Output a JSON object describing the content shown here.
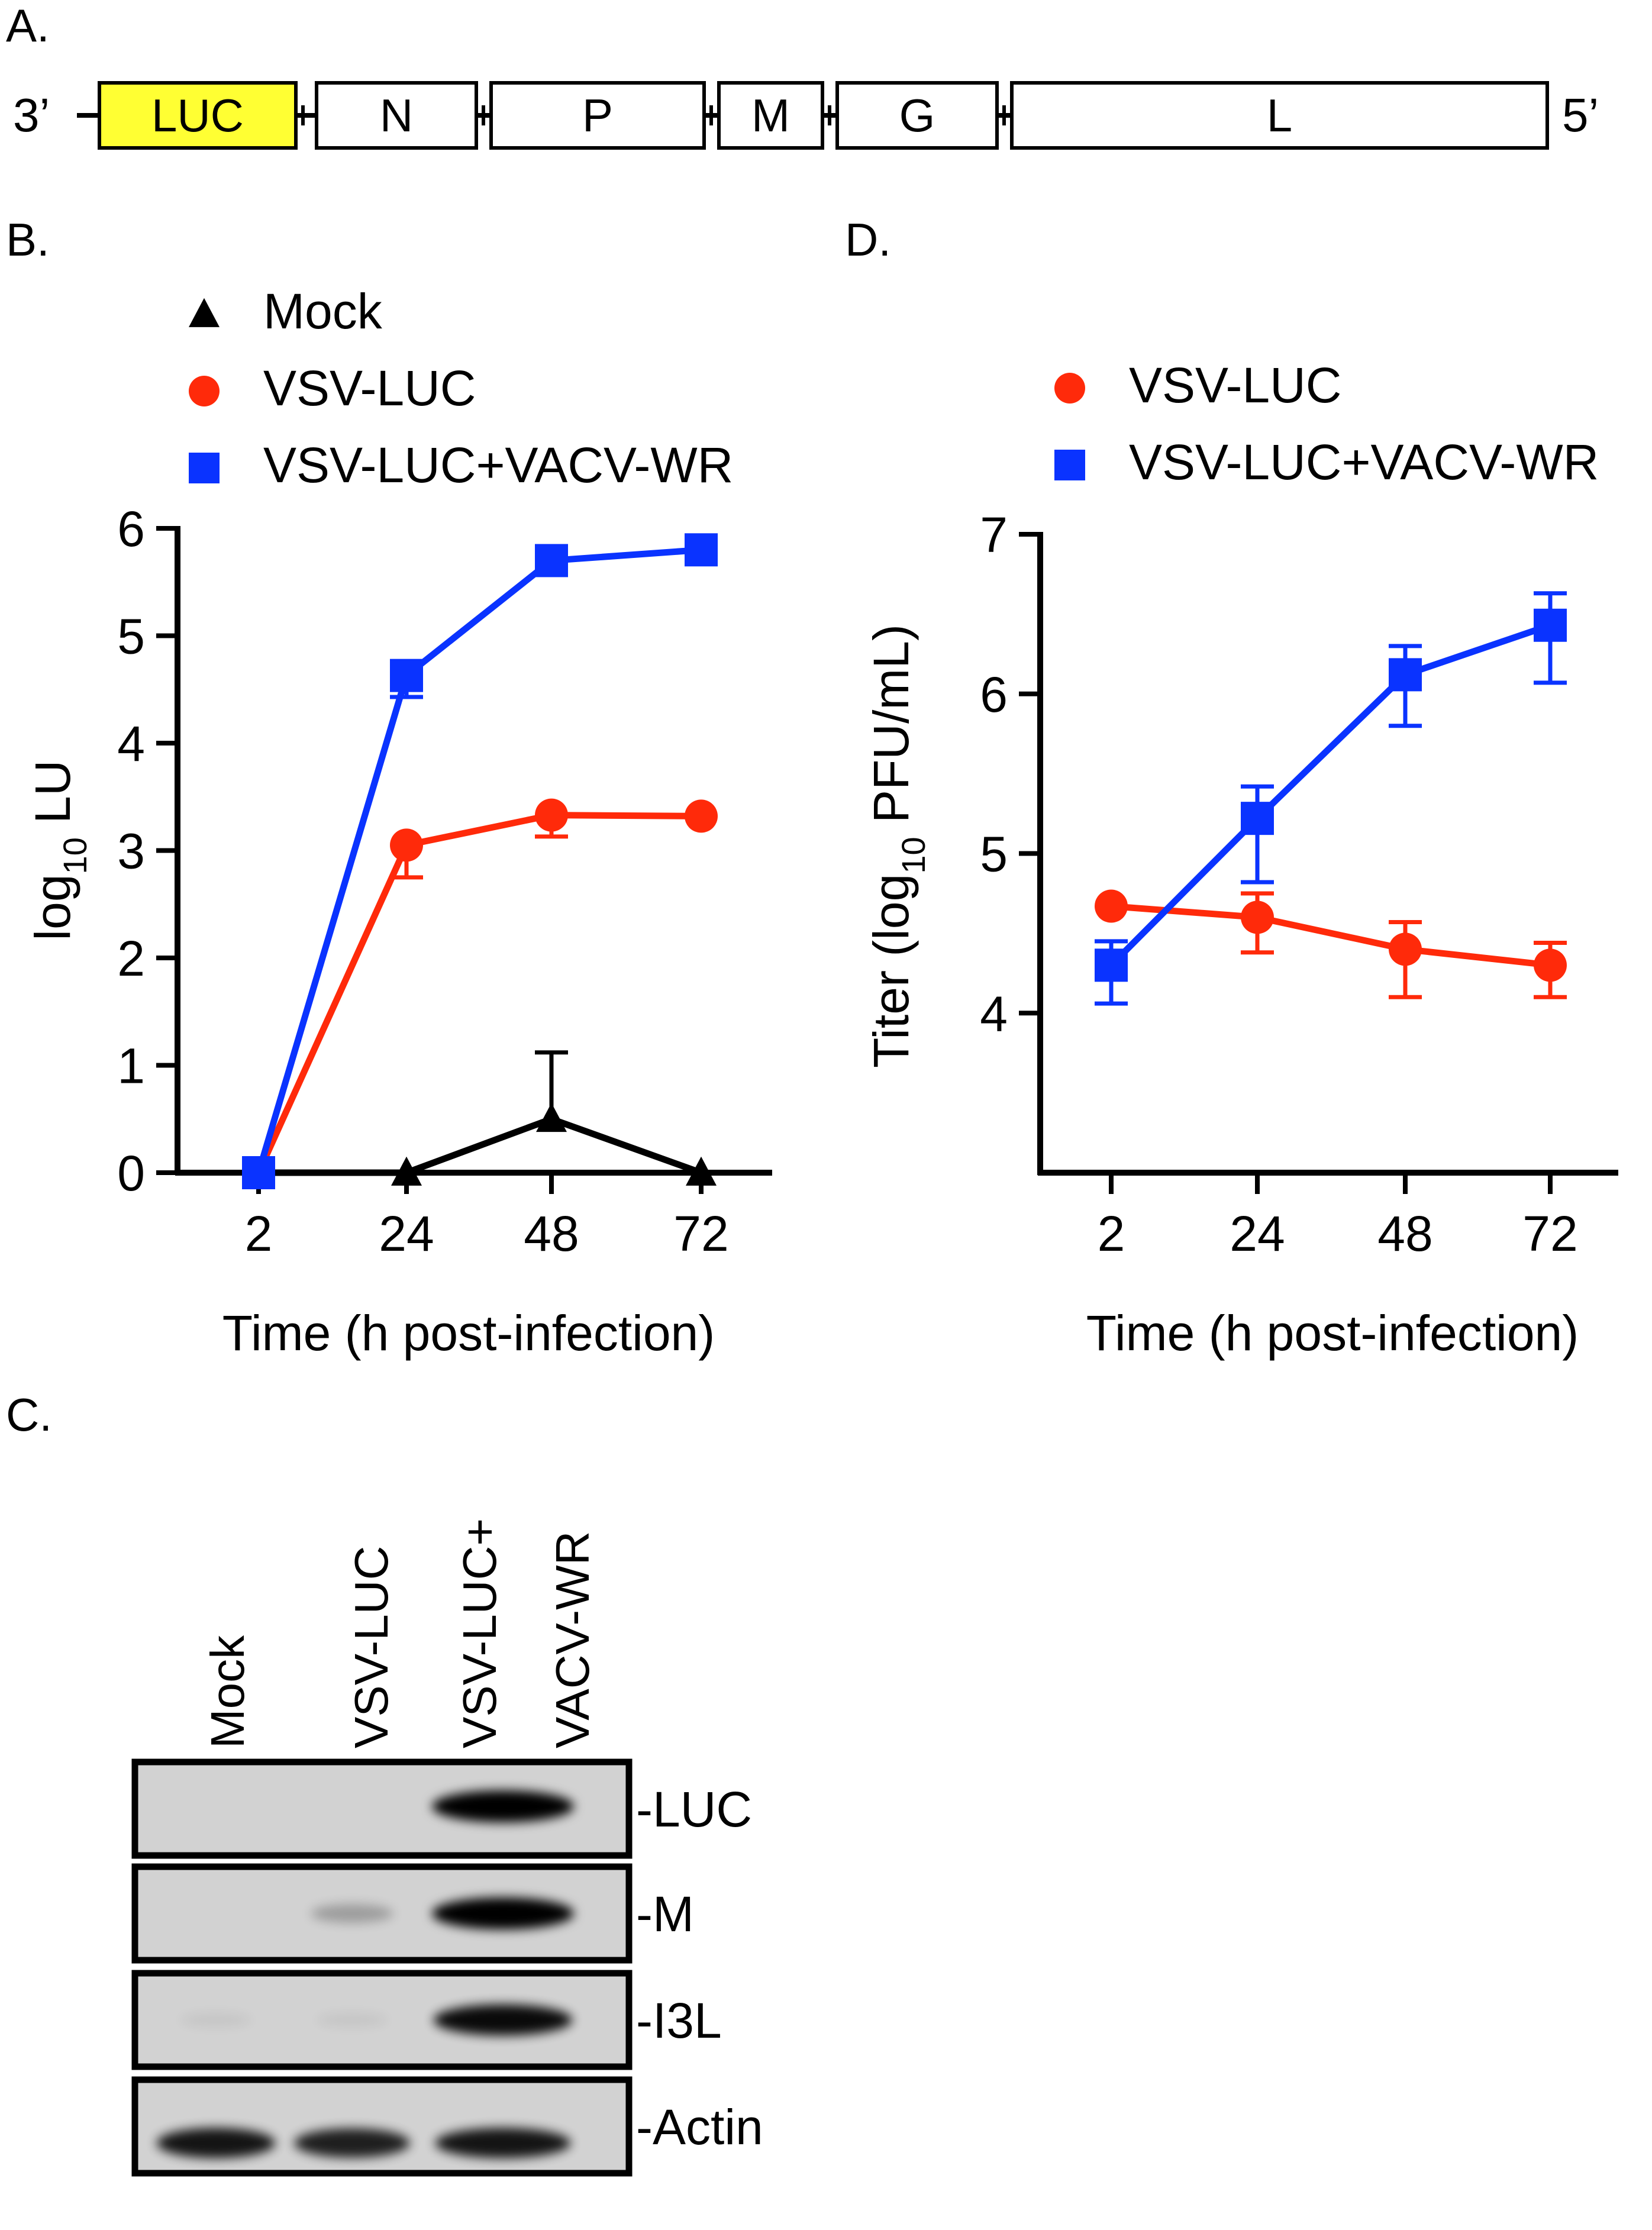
{
  "colors": {
    "mock": "#000000",
    "vsv_luc": "#ff2a0a",
    "vsv_luc_vacv": "#0a33ff",
    "luc_box": "#ffff33",
    "axis": "#000000"
  },
  "panel_a": {
    "label": "A.",
    "end_3": "3’",
    "end_5": "5’",
    "genes": [
      "LUC",
      "N",
      "P",
      "M",
      "G",
      "L"
    ]
  },
  "panel_c": {
    "label": "C.",
    "lanes": [
      "Mock",
      "VSV-LUC",
      "VSV-LUC+",
      "VACV-WR"
    ],
    "blots": [
      {
        "name": "LUC",
        "label": "-LUC",
        "intensity": [
          0.0,
          0.0,
          1.0
        ]
      },
      {
        "name": "M",
        "label": "-M",
        "intensity": [
          0.0,
          0.25,
          1.0
        ]
      },
      {
        "name": "I3L",
        "label": "-I3L",
        "intensity": [
          0.05,
          0.05,
          0.95
        ]
      },
      {
        "name": "Actin",
        "label": "-Actin",
        "intensity": [
          0.9,
          0.85,
          0.9
        ]
      }
    ]
  },
  "chart_data": [
    {
      "panel_label": "B.",
      "type": "line",
      "x": [
        "2",
        "24",
        "48",
        "72"
      ],
      "xlabel": "Time (h post-infection)",
      "ylabel_main": "log",
      "ylabel_sub": "10",
      "ylabel_tail": " LU",
      "ylim": [
        0,
        6
      ],
      "yticks": [
        "0",
        "1",
        "2",
        "3",
        "4",
        "5",
        "6"
      ],
      "series": [
        {
          "name": "Mock",
          "marker": "triangle",
          "values": [
            0,
            0,
            0.5,
            0
          ],
          "err_up": [
            0,
            0,
            0.62,
            0
          ],
          "err_down": [
            0,
            0,
            0,
            0
          ]
        },
        {
          "name": "VSV-LUC",
          "marker": "circle",
          "values": [
            0,
            3.05,
            3.33,
            3.32
          ],
          "err_up": [
            0,
            0,
            0,
            0
          ],
          "err_down": [
            0,
            0.3,
            0.2,
            0
          ]
        },
        {
          "name": "VSV-LUC+VACV-WR",
          "marker": "square",
          "values": [
            0,
            4.63,
            5.7,
            5.8
          ],
          "err_up": [
            0,
            0,
            0,
            0
          ],
          "err_down": [
            0,
            0.2,
            0.1,
            0
          ]
        }
      ]
    },
    {
      "panel_label": "D.",
      "type": "line",
      "x": [
        "2",
        "24",
        "48",
        "72"
      ],
      "xlabel": "Time (h post-infection)",
      "ylabel_main": "Titer (log",
      "ylabel_sub": "10",
      "ylabel_tail": " PFU/mL)",
      "ylim": [
        3,
        7
      ],
      "yticks": [
        "4",
        "5",
        "6",
        "7"
      ],
      "series": [
        {
          "name": "VSV-LUC",
          "marker": "circle",
          "values": [
            4.67,
            4.6,
            4.4,
            4.3
          ],
          "err_up": [
            0,
            0.15,
            0.17,
            0.14
          ],
          "err_down": [
            0,
            0.22,
            0.3,
            0.2
          ]
        },
        {
          "name": "VSV-LUC+VACV-WR",
          "marker": "square",
          "values": [
            4.3,
            5.22,
            6.12,
            6.43
          ],
          "err_up": [
            0.15,
            0.2,
            0.18,
            0.2
          ],
          "err_down": [
            0.24,
            0.4,
            0.32,
            0.36
          ]
        }
      ]
    }
  ]
}
